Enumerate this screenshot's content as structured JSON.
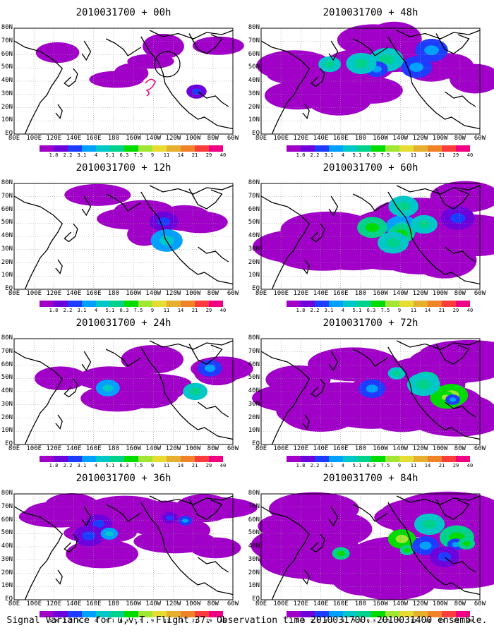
{
  "panels": [
    {
      "title": "2010031700 + 00h",
      "coverage": 0.1,
      "peak": 2
    },
    {
      "title": "2010031700 + 12h",
      "coverage": 0.22,
      "peak": 3
    },
    {
      "title": "2010031700 + 24h",
      "coverage": 0.3,
      "peak": 4
    },
    {
      "title": "2010031700 + 36h",
      "coverage": 0.45,
      "peak": 4
    },
    {
      "title": "2010031700 + 48h",
      "coverage": 0.55,
      "peak": 4
    },
    {
      "title": "2010031700 + 60h",
      "coverage": 0.65,
      "peak": 5
    },
    {
      "title": "2010031700 + 72h",
      "coverage": 0.75,
      "peak": 6
    },
    {
      "title": "2010031700 + 84h",
      "coverage": 0.85,
      "peak": 6
    }
  ],
  "lat_labels": [
    "80N",
    "70N",
    "60N",
    "50N",
    "40N",
    "30N",
    "20N",
    "10N",
    "EQ"
  ],
  "lon_labels": [
    "80E",
    "100E",
    "120E",
    "140E",
    "160E",
    "180",
    "160W",
    "140W",
    "120W",
    "100W",
    "80W",
    "60W"
  ],
  "colorbar": {
    "colors": [
      "#a000c8",
      "#6e00dc",
      "#1e3cff",
      "#00a0ff",
      "#00c8c8",
      "#00d28c",
      "#00dc00",
      "#a0e632",
      "#e6dc32",
      "#e6af2d",
      "#f08228",
      "#fa3c3c",
      "#f00082"
    ],
    "labels": [
      "1.8",
      "2.2",
      "3.1",
      "4",
      "5.1",
      "6.3",
      "7.5",
      "9",
      "11",
      "14",
      "21",
      "29",
      "40"
    ]
  },
  "caption": "Signal Variance for u,v,T. Flight 37. Observation time 2010031700. 2010031400 ensemble."
}
